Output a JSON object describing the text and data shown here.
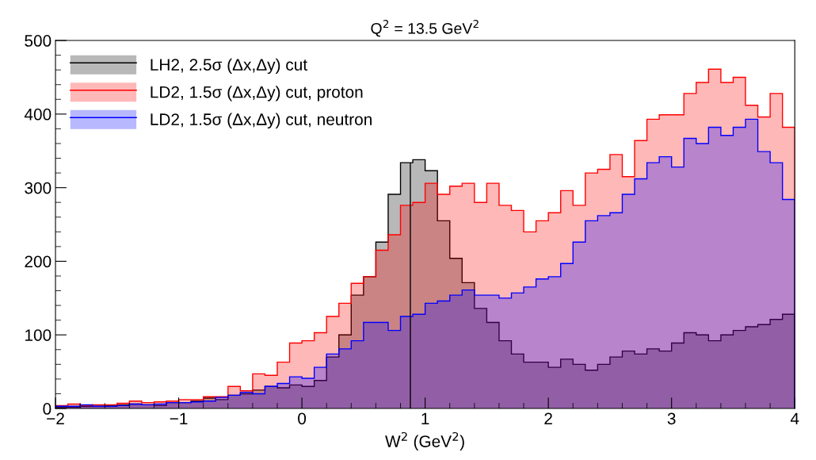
{
  "chart_data": {
    "type": "histogram",
    "title": "Q$^{2}$ = 13.5 GeV$^{2}$",
    "xlabel": "W$^{2}$ (GeV$^{2}$)",
    "bins": [
      -2.0,
      -1.9,
      -1.8,
      -1.7,
      -1.6,
      -1.5,
      -1.4,
      -1.3,
      -1.2,
      -1.1,
      -1.0,
      -0.9,
      -0.8,
      -0.7,
      -0.6,
      -0.5,
      -0.4,
      -0.3,
      -0.2,
      -0.1,
      0.0,
      0.1,
      0.2,
      0.3,
      0.4,
      0.5,
      0.6,
      0.7,
      0.8,
      0.9,
      1.0,
      1.1,
      1.2,
      1.3,
      1.4,
      1.5,
      1.6,
      1.7,
      1.8,
      1.9,
      2.0,
      2.1,
      2.2,
      2.3,
      2.4,
      2.5,
      2.6,
      2.7,
      2.8,
      2.9,
      3.0,
      3.1,
      3.2,
      3.3,
      3.4,
      3.5,
      3.6,
      3.7,
      3.8,
      3.9,
      4.0
    ],
    "series": [
      {
        "name": "LH2, 2.5σ (Δx,Δy) cut",
        "color": "#000000",
        "values": [
          2,
          2,
          3,
          3,
          4,
          5,
          6,
          5,
          4,
          8,
          8,
          10,
          14,
          12,
          18,
          20,
          25,
          30,
          28,
          32,
          30,
          38,
          70,
          100,
          154,
          179,
          226,
          291,
          334,
          338,
          323,
          255,
          204,
          171,
          136,
          117,
          92,
          74,
          63,
          63,
          56,
          67,
          60,
          52,
          60,
          70,
          78,
          74,
          81,
          78,
          89,
          103,
          100,
          92,
          100,
          106,
          111,
          114,
          121,
          128
        ]
      },
      {
        "name": "LD2, 1.5σ (Δx,Δy) cut, proton",
        "color": "#ff0000",
        "values": [
          4,
          6,
          4,
          5,
          5,
          7,
          10,
          8,
          9,
          10,
          12,
          12,
          16,
          16,
          30,
          24,
          47,
          45,
          63,
          89,
          92,
          103,
          125,
          143,
          170,
          179,
          215,
          236,
          276,
          280,
          306,
          291,
          302,
          306,
          280,
          306,
          276,
          269,
          240,
          255,
          266,
          296,
          276,
          320,
          325,
          345,
          315,
          364,
          393,
          399,
          399,
          428,
          443,
          461,
          443,
          450,
          412,
          396,
          428,
          382
        ]
      },
      {
        "name": "LD2, 1.5σ (Δx,Δy) cut, neutron",
        "color": "#0000ff",
        "values": [
          3,
          3,
          5,
          3,
          3,
          4,
          6,
          5,
          6,
          8,
          8,
          9,
          10,
          15,
          18,
          22,
          20,
          30,
          34,
          43,
          41,
          56,
          74,
          81,
          92,
          117,
          117,
          106,
          125,
          128,
          143,
          146,
          154,
          161,
          154,
          154,
          150,
          157,
          165,
          176,
          179,
          197,
          226,
          255,
          262,
          266,
          291,
          312,
          334,
          342,
          328,
          367,
          360,
          382,
          371,
          382,
          393,
          349,
          334,
          284
        ]
      }
    ],
    "xlim": [
      -2,
      4
    ],
    "xticks": [
      {
        "value": -2,
        "label": "−2"
      },
      {
        "value": -1,
        "label": "−1"
      },
      0,
      1,
      2,
      3,
      4
    ],
    "ylim": [
      0,
      500
    ],
    "yticks": [
      0,
      100,
      200,
      300,
      400,
      500
    ],
    "ref_lines": [
      {
        "axis": "x",
        "value": 0.88,
        "color": "#000000"
      }
    ],
    "legend": "top left",
    "grid": false
  }
}
